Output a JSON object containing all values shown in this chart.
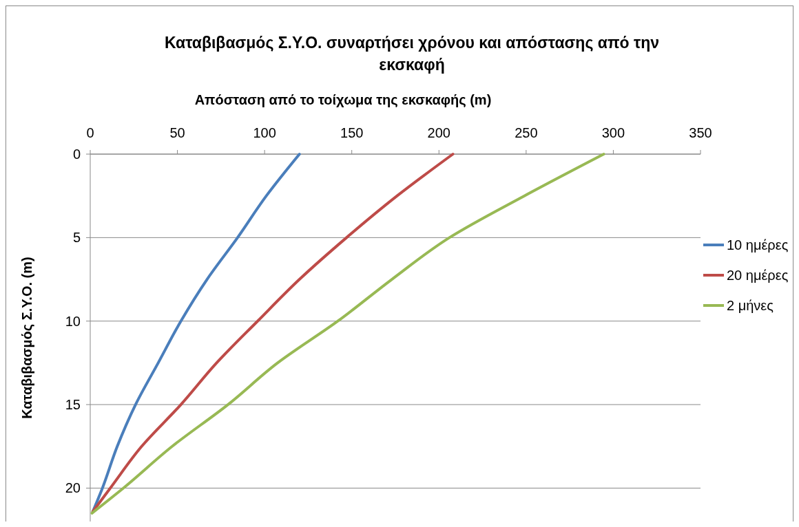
{
  "chart_data": {
    "type": "line",
    "title": "Καταβιβασμός Σ.Υ.Ο. συναρτήσει χρόνου και απόστασης από την εκσκαφή",
    "xlabel": "Απόσταση από το τοίχωμα της εκσκαφής (m)",
    "ylabel": "Καταβιβασμός Σ.Υ.Ο. (m)",
    "xlim": [
      0,
      350
    ],
    "xticks": [
      0,
      50,
      100,
      150,
      200,
      250,
      300,
      350
    ],
    "ylim": [
      22,
      0
    ],
    "yticks": [
      0,
      5,
      10,
      15,
      20
    ],
    "grid": "y",
    "legend": "right",
    "marker": "none",
    "line_style": "solid",
    "series": [
      {
        "name": "10 ημέρες",
        "color": "#4a7ebb",
        "x": [
          120,
          101,
          84.5,
          67,
          52,
          39,
          26,
          15.5,
          7,
          1.5
        ],
        "values": [
          0,
          2.5,
          5,
          7.5,
          10,
          12.5,
          15,
          17.5,
          20,
          21.4
        ]
      },
      {
        "name": "20 ημέρες",
        "color": "#be4b48",
        "x": [
          208,
          176,
          147,
          120,
          96,
          72.5,
          52,
          29.5,
          11.5,
          1.5
        ],
        "values": [
          0,
          2.5,
          5,
          7.5,
          10,
          12.5,
          15,
          17.5,
          20,
          21.4
        ]
      },
      {
        "name": "2 μήνες",
        "color": "#98b954",
        "x": [
          294.5,
          249,
          206,
          173,
          142,
          107.5,
          79,
          47,
          19,
          1
        ],
        "values": [
          0,
          2.5,
          5,
          7.5,
          10,
          12.5,
          15,
          17.5,
          20,
          21.5
        ]
      }
    ]
  }
}
